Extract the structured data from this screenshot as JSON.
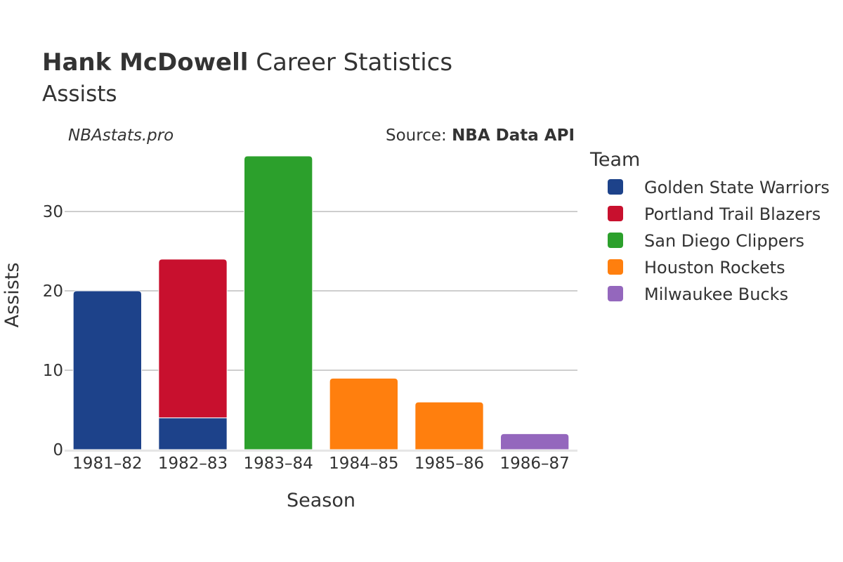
{
  "header": {
    "player_name": "Hank McDowell",
    "title_rest": "Career Statistics",
    "subtitle": "Assists",
    "watermark": "NBAstats.pro",
    "source_prefix": "Source: ",
    "source_name": "NBA Data API"
  },
  "chart_data": {
    "type": "bar",
    "stacked": true,
    "categories": [
      "1981–82",
      "1982–83",
      "1983–84",
      "1984–85",
      "1985–86",
      "1986–87"
    ],
    "xlabel": "Season",
    "ylabel": "Assists",
    "ylim": [
      0,
      37
    ],
    "yticks": [
      0,
      10,
      20,
      30
    ],
    "grid": true,
    "legend_title": "Team",
    "legend_position": "right",
    "series": [
      {
        "name": "Golden State Warriors",
        "color": "#1d428a",
        "values": [
          20,
          4,
          0,
          0,
          0,
          0
        ]
      },
      {
        "name": "Portland Trail Blazers",
        "color": "#c8102e",
        "values": [
          0,
          20,
          0,
          0,
          0,
          0
        ]
      },
      {
        "name": "San Diego Clippers",
        "color": "#2ca02c",
        "values": [
          0,
          0,
          37,
          0,
          0,
          0
        ]
      },
      {
        "name": "Houston Rockets",
        "color": "#ff7f0e",
        "values": [
          0,
          0,
          0,
          9,
          6,
          0
        ]
      },
      {
        "name": "Milwaukee Bucks",
        "color": "#9467bd",
        "values": [
          0,
          0,
          0,
          0,
          0,
          2
        ]
      }
    ]
  }
}
